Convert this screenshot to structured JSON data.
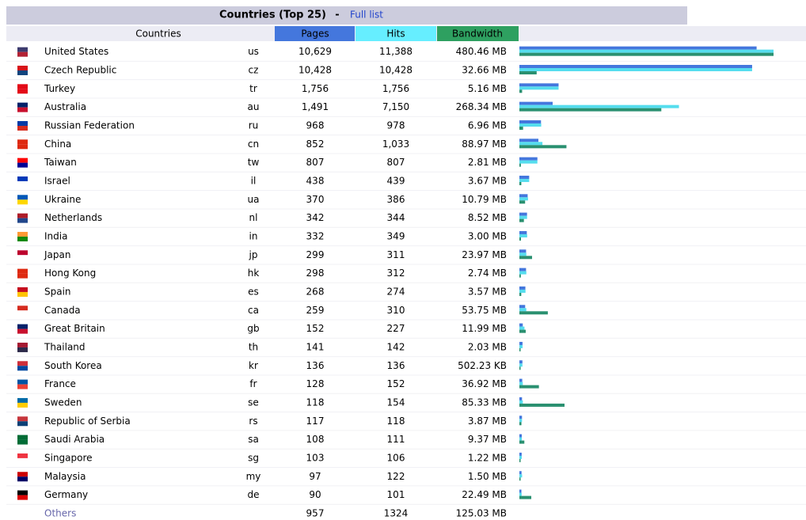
{
  "table": {
    "title": "Countries (Top 25)",
    "separator": "-",
    "link": "Full list",
    "columns": [
      "Countries",
      "Pages",
      "Hits",
      "Bandwidth"
    ],
    "rows": [
      {
        "country": "United States",
        "code": "us",
        "pages": {
          "value": 10629,
          "label": "10,629"
        },
        "hits": {
          "value": 11388,
          "label": "11,388"
        },
        "bandwidth": {
          "value": 480.46,
          "label": "480.46 MB"
        }
      },
      {
        "country": "Czech Republic",
        "code": "cz",
        "pages": {
          "value": 10428,
          "label": "10,428"
        },
        "hits": {
          "value": 10428,
          "label": "10,428"
        },
        "bandwidth": {
          "value": 32.66,
          "label": "32.66 MB"
        }
      },
      {
        "country": "Turkey",
        "code": "tr",
        "pages": {
          "value": 1756,
          "label": "1,756"
        },
        "hits": {
          "value": 1756,
          "label": "1,756"
        },
        "bandwidth": {
          "value": 5.16,
          "label": "5.16 MB"
        }
      },
      {
        "country": "Australia",
        "code": "au",
        "pages": {
          "value": 1491,
          "label": "1,491"
        },
        "hits": {
          "value": 7150,
          "label": "7,150"
        },
        "bandwidth": {
          "value": 268.34,
          "label": "268.34 MB"
        }
      },
      {
        "country": "Russian Federation",
        "code": "ru",
        "pages": 968,
        "hits": 978,
        "bandwidth": {
          "value": 6.96,
          "label": "6.96 MB"
        }
      },
      {
        "country": "China",
        "code": "cn",
        "pages": 852,
        "hits": {
          "value": 1033,
          "label": "1,033"
        },
        "bandwidth": {
          "value": 88.97,
          "label": "88.97 MB"
        }
      },
      {
        "country": "Taiwan",
        "code": "tw",
        "pages": 807,
        "hits": 807,
        "bandwidth": {
          "value": 2.81,
          "label": "2.81 MB"
        }
      },
      {
        "country": "Israel",
        "code": "il",
        "pages": 438,
        "hits": 439,
        "bandwidth": {
          "value": 3.67,
          "label": "3.67 MB"
        }
      },
      {
        "country": "Ukraine",
        "code": "ua",
        "pages": 370,
        "hits": 386,
        "bandwidth": {
          "value": 10.79,
          "label": "10.79 MB"
        }
      },
      {
        "country": "Netherlands",
        "code": "nl",
        "pages": 342,
        "hits": 344,
        "bandwidth": {
          "value": 8.52,
          "label": "8.52 MB"
        }
      },
      {
        "country": "India",
        "code": "in",
        "pages": 332,
        "hits": 349,
        "bandwidth": {
          "value": 3,
          "label": "3.00 MB"
        }
      },
      {
        "country": "Japan",
        "code": "jp",
        "pages": 299,
        "hits": 311,
        "bandwidth": {
          "value": 23.97,
          "label": "23.97 MB"
        }
      },
      {
        "country": "Hong Kong",
        "code": "hk",
        "pages": 298,
        "hits": 312,
        "bandwidth": {
          "value": 2.74,
          "label": "2.74 MB"
        }
      },
      {
        "country": "Spain",
        "code": "es",
        "pages": 268,
        "hits": 274,
        "bandwidth": {
          "value": 3.57,
          "label": "3.57 MB"
        }
      },
      {
        "country": "Canada",
        "code": "ca",
        "pages": 259,
        "hits": 310,
        "bandwidth": {
          "value": 53.75,
          "label": "53.75 MB"
        }
      },
      {
        "country": "Great Britain",
        "code": "gb",
        "pages": 152,
        "hits": 227,
        "bandwidth": {
          "value": 11.99,
          "label": "11.99 MB"
        }
      },
      {
        "country": "Thailand",
        "code": "th",
        "pages": 141,
        "hits": 142,
        "bandwidth": {
          "value": 2.03,
          "label": "2.03 MB"
        }
      },
      {
        "country": "South Korea",
        "code": "kr",
        "pages": 136,
        "hits": 136,
        "bandwidth": {
          "value": 0.50223,
          "label": "502.23 KB"
        }
      },
      {
        "country": "France",
        "code": "fr",
        "pages": 128,
        "hits": 152,
        "bandwidth": {
          "value": 36.92,
          "label": "36.92 MB"
        }
      },
      {
        "country": "Sweden",
        "code": "se",
        "pages": 118,
        "hits": 154,
        "bandwidth": {
          "value": 85.33,
          "label": "85.33 MB"
        }
      },
      {
        "country": "Republic of Serbia",
        "code": "rs",
        "pages": 117,
        "hits": 118,
        "bandwidth": {
          "value": 3.87,
          "label": "3.87 MB"
        }
      },
      {
        "country": "Saudi Arabia",
        "code": "sa",
        "pages": 108,
        "hits": 111,
        "bandwidth": {
          "value": 9.37,
          "label": "9.37 MB"
        }
      },
      {
        "country": "Singapore",
        "code": "sg",
        "pages": 103,
        "hits": 106,
        "bandwidth": {
          "value": 1.22,
          "label": "1.22 MB"
        }
      },
      {
        "country": "Malaysia",
        "code": "my",
        "pages": 97,
        "hits": 122,
        "bandwidth": {
          "value": 1.5,
          "label": "1.50 MB"
        }
      },
      {
        "country": "Germany",
        "code": "de",
        "pages": 90,
        "hits": 101,
        "bandwidth": {
          "value": 22.49,
          "label": "22.49 MB"
        }
      }
    ],
    "others": {
      "country": "Others",
      "pages": 957,
      "hits": 1324,
      "bandwidth": {
        "value": 125.03,
        "label": "125.03 MB"
      }
    }
  }
}
